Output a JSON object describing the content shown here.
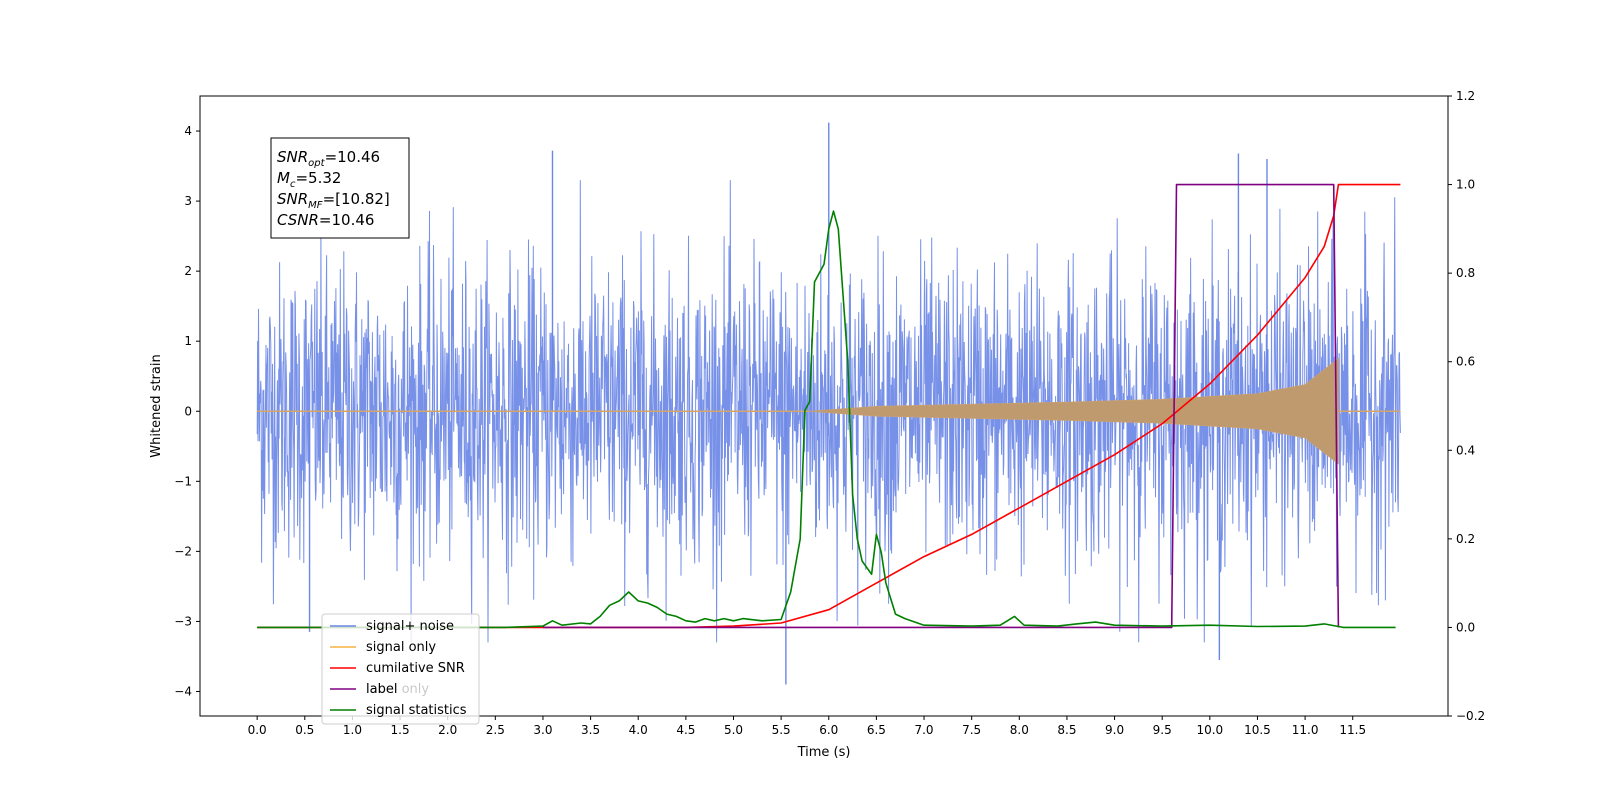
{
  "chart_data": {
    "type": "line",
    "xlabel": "Time (s)",
    "ylabel": "Whitened strain",
    "xlim": [
      -0.6,
      12.5
    ],
    "ylim": [
      -4.35,
      4.5
    ],
    "y2lim": [
      -0.2,
      1.2
    ],
    "x_ticks": [
      "0.0",
      "0.5",
      "1.0",
      "1.5",
      "2.0",
      "2.5",
      "3.0",
      "3.5",
      "4.0",
      "4.5",
      "5.0",
      "5.5",
      "6.0",
      "6.5",
      "7.0",
      "7.5",
      "8.0",
      "8.5",
      "9.0",
      "9.5",
      "10.0",
      "10.5",
      "11.0",
      "11.5"
    ],
    "y_ticks": [
      "4",
      "3",
      "2",
      "1",
      "0",
      "−1",
      "−2",
      "−3",
      "−4"
    ],
    "y2_ticks": [
      "1.2",
      "1.0",
      "0.8",
      "0.6",
      "0.4",
      "0.2",
      "0.0",
      "−0.2"
    ],
    "annotation": {
      "lines": [
        {
          "main": "SNR",
          "sub": "opt",
          "rest": "=10.46"
        },
        {
          "main": "M",
          "sub": "c",
          "rest": "=5.32"
        },
        {
          "main": "SNR",
          "sub": "MF",
          "rest": "=[10.82]"
        },
        {
          "main": "CSNR",
          "sub": "",
          "rest": "=10.46"
        }
      ]
    },
    "legend": {
      "placement": "lower-left",
      "entries": [
        {
          "label": "signal+ noise",
          "color": "#6b87e6"
        },
        {
          "label": "signal only",
          "color": "#f5b341"
        },
        {
          "label": "cumilative SNR",
          "color": "#ff0000"
        },
        {
          "label": "label",
          "color": "#800080"
        },
        {
          "label": "signal statistics",
          "color": "#008000"
        }
      ],
      "obscured_text": "label only"
    },
    "series": [
      {
        "name": "signal+ noise",
        "axis": "left",
        "color": "#6b87e6",
        "description": "dense whitened noise + signal, roughly ±1.6 band with spikes",
        "x_range": [
          0.0,
          12.0
        ],
        "notable_peaks": [
          [
            6.0,
            4.12
          ],
          [
            3.1,
            3.72
          ],
          [
            10.3,
            3.68
          ],
          [
            10.6,
            3.6
          ],
          [
            5.55,
            -3.9
          ],
          [
            10.1,
            -3.55
          ],
          [
            0.55,
            -3.15
          ]
        ]
      },
      {
        "name": "signal only",
        "axis": "left",
        "color": "#f5b341",
        "chirp_start": 5.8,
        "merger": 11.35,
        "end": 12.0,
        "envelope": [
          [
            5.8,
            0.0
          ],
          [
            6.5,
            0.07
          ],
          [
            7.5,
            0.1
          ],
          [
            8.5,
            0.13
          ],
          [
            9.5,
            0.17
          ],
          [
            10.5,
            0.25
          ],
          [
            11.0,
            0.38
          ],
          [
            11.3,
            0.7
          ],
          [
            11.35,
            0.75
          ]
        ]
      },
      {
        "name": "cumilative SNR",
        "axis": "right",
        "color": "#ff0000",
        "points": [
          [
            0.0,
            0.0
          ],
          [
            4.5,
            0.0
          ],
          [
            5.0,
            0.003
          ],
          [
            5.5,
            0.01
          ],
          [
            6.0,
            0.04
          ],
          [
            6.5,
            0.1
          ],
          [
            7.0,
            0.16
          ],
          [
            7.5,
            0.21
          ],
          [
            8.0,
            0.27
          ],
          [
            8.5,
            0.33
          ],
          [
            9.0,
            0.39
          ],
          [
            9.5,
            0.46
          ],
          [
            10.0,
            0.55
          ],
          [
            10.5,
            0.66
          ],
          [
            11.0,
            0.79
          ],
          [
            11.2,
            0.86
          ],
          [
            11.3,
            0.93
          ],
          [
            11.35,
            1.0
          ],
          [
            12.0,
            1.0
          ]
        ]
      },
      {
        "name": "label",
        "axis": "right",
        "color": "#800080",
        "points": [
          [
            3.0,
            0.0
          ],
          [
            9.6,
            0.0
          ],
          [
            9.65,
            1.0
          ],
          [
            11.3,
            1.0
          ],
          [
            11.35,
            0.0
          ]
        ]
      },
      {
        "name": "signal statistics",
        "axis": "right",
        "color": "#008000",
        "points": [
          [
            0.0,
            0.0
          ],
          [
            2.6,
            0.0
          ],
          [
            3.0,
            0.003
          ],
          [
            3.1,
            0.015
          ],
          [
            3.2,
            0.005
          ],
          [
            3.4,
            0.01
          ],
          [
            3.5,
            0.008
          ],
          [
            3.6,
            0.025
          ],
          [
            3.7,
            0.05
          ],
          [
            3.8,
            0.06
          ],
          [
            3.9,
            0.08
          ],
          [
            4.0,
            0.06
          ],
          [
            4.1,
            0.055
          ],
          [
            4.2,
            0.045
          ],
          [
            4.3,
            0.03
          ],
          [
            4.4,
            0.025
          ],
          [
            4.5,
            0.015
          ],
          [
            4.6,
            0.012
          ],
          [
            4.7,
            0.02
          ],
          [
            4.8,
            0.015
          ],
          [
            4.9,
            0.02
          ],
          [
            5.0,
            0.015
          ],
          [
            5.1,
            0.02
          ],
          [
            5.3,
            0.015
          ],
          [
            5.5,
            0.018
          ],
          [
            5.6,
            0.08
          ],
          [
            5.7,
            0.2
          ],
          [
            5.75,
            0.49
          ],
          [
            5.8,
            0.51
          ],
          [
            5.85,
            0.78
          ],
          [
            5.95,
            0.82
          ],
          [
            6.0,
            0.9
          ],
          [
            6.05,
            0.94
          ],
          [
            6.1,
            0.9
          ],
          [
            6.2,
            0.6
          ],
          [
            6.25,
            0.3
          ],
          [
            6.3,
            0.2
          ],
          [
            6.35,
            0.15
          ],
          [
            6.45,
            0.12
          ],
          [
            6.5,
            0.21
          ],
          [
            6.55,
            0.17
          ],
          [
            6.6,
            0.1
          ],
          [
            6.7,
            0.03
          ],
          [
            6.8,
            0.02
          ],
          [
            7.0,
            0.005
          ],
          [
            7.5,
            0.003
          ],
          [
            7.8,
            0.005
          ],
          [
            7.95,
            0.025
          ],
          [
            8.05,
            0.005
          ],
          [
            8.4,
            0.003
          ],
          [
            8.6,
            0.008
          ],
          [
            8.8,
            0.012
          ],
          [
            9.0,
            0.005
          ],
          [
            9.5,
            0.003
          ],
          [
            10.0,
            0.005
          ],
          [
            10.5,
            0.002
          ],
          [
            11.0,
            0.003
          ],
          [
            11.2,
            0.008
          ],
          [
            11.4,
            0.0
          ],
          [
            11.95,
            0.0
          ]
        ]
      }
    ]
  }
}
